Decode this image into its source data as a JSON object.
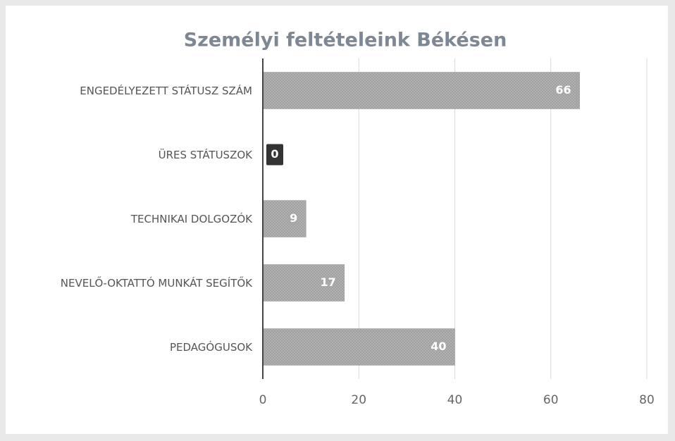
{
  "chart_data": {
    "type": "barh",
    "title": "Személyi feltételeink Békésen",
    "categories": [
      "ENGEDÉLYEZETT STÁTUSZ SZÁM",
      "ÜRES STÁTUSZOK",
      "TECHNIKAI DOLGOZÓK",
      "NEVELŐ-OKTATTÓ MUNKÁT SEGÍTŐK",
      "PEDAGÓGUSOK"
    ],
    "values": [
      66,
      0,
      9,
      17,
      40
    ],
    "color": "#a9a9a9",
    "xlim": [
      0,
      80
    ],
    "xticks": [
      0,
      20,
      40,
      60,
      80
    ],
    "grid": true
  }
}
